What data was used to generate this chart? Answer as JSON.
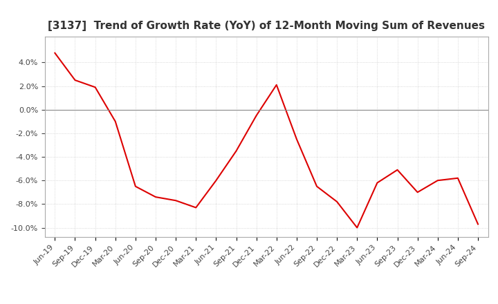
{
  "title": "[3137]  Trend of Growth Rate (YoY) of 12-Month Moving Sum of Revenues",
  "x_labels": [
    "Jun-19",
    "Sep-19",
    "Dec-19",
    "Mar-20",
    "Jun-20",
    "Sep-20",
    "Dec-20",
    "Mar-21",
    "Jun-21",
    "Sep-21",
    "Dec-21",
    "Mar-22",
    "Jun-22",
    "Sep-22",
    "Dec-22",
    "Mar-23",
    "Jun-23",
    "Sep-23",
    "Dec-23",
    "Mar-24",
    "Jun-24",
    "Sep-24"
  ],
  "y_values": [
    0.048,
    0.025,
    0.019,
    -0.01,
    -0.065,
    -0.074,
    -0.077,
    -0.083,
    -0.06,
    -0.035,
    -0.005,
    0.021,
    -0.025,
    -0.065,
    -0.078,
    -0.1,
    -0.062,
    -0.051,
    -0.07,
    -0.06,
    -0.058,
    -0.097
  ],
  "line_color": "#dd0000",
  "line_width": 1.5,
  "ylim": [
    -0.108,
    0.062
  ],
  "yticks": [
    -0.1,
    -0.08,
    -0.06,
    -0.04,
    -0.02,
    0.0,
    0.02,
    0.04
  ],
  "bg_color": "#ffffff",
  "plot_bg_color": "#ffffff",
  "grid_color": "#cccccc",
  "title_fontsize": 11,
  "tick_fontsize": 8,
  "title_color": "#333333"
}
